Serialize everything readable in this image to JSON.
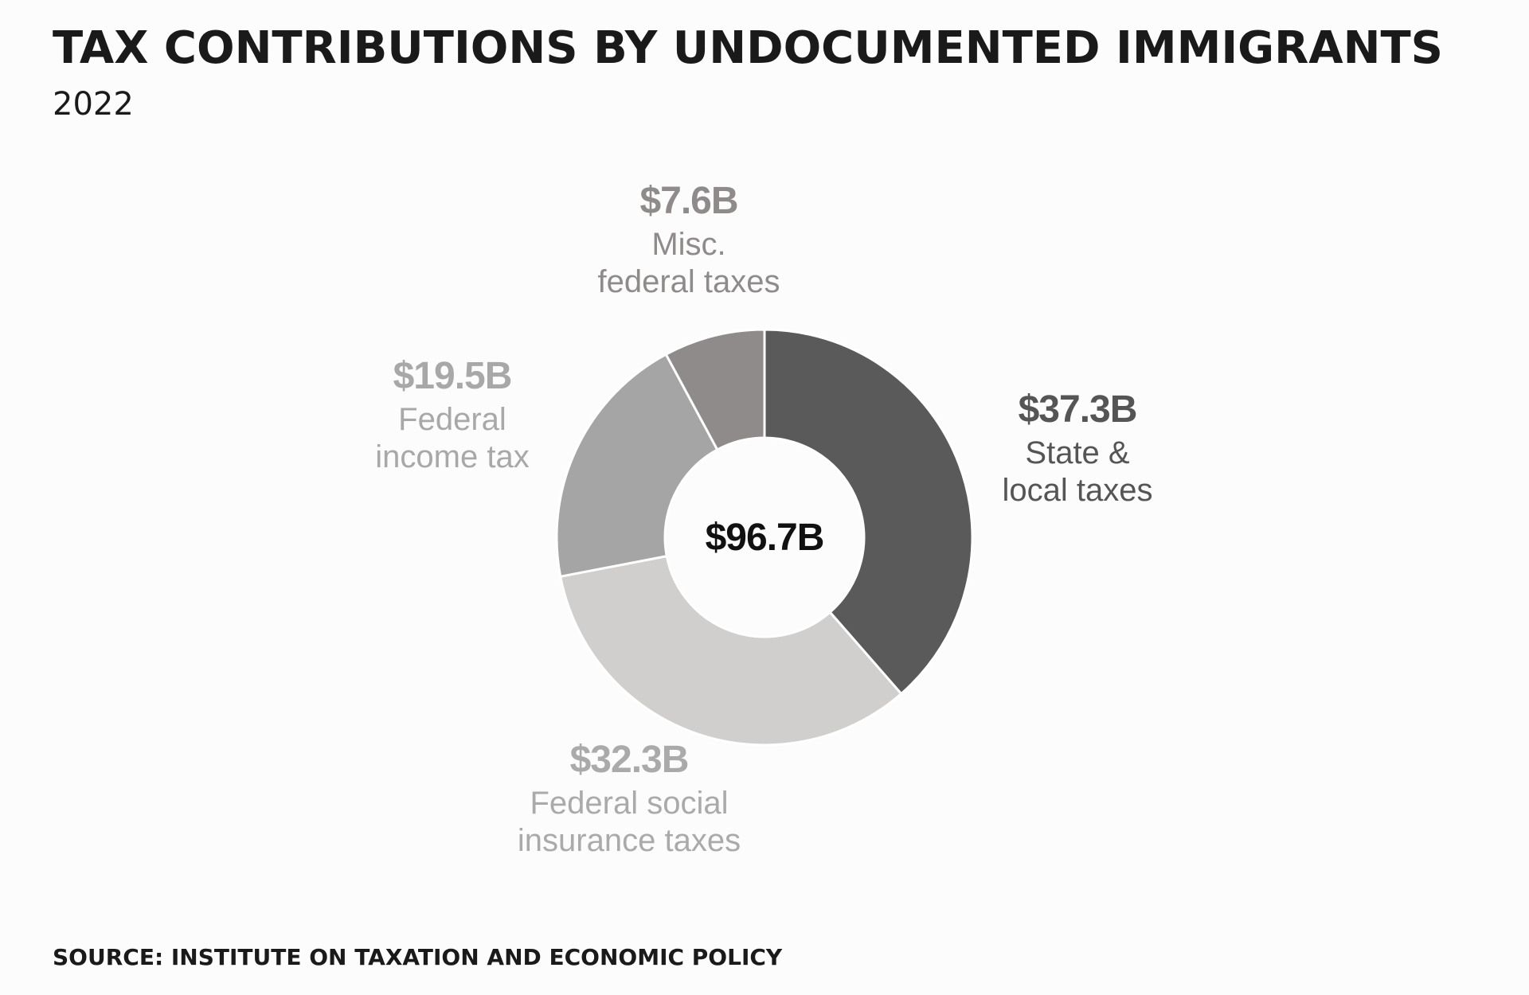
{
  "chart_data": {
    "type": "donut",
    "title": "TAX CONTRIBUTIONS BY UNDOCUMENTED IMMIGRANTS",
    "subtitle": "2022",
    "source": "SOURCE: INSTITUTE ON TAXATION AND ECONOMIC POLICY",
    "categories": [
      "State &\nlocal taxes",
      "Federal social\ninsurance taxes",
      "Federal\nincome tax",
      "Misc.\nfederal taxes"
    ],
    "values": [
      37.3,
      32.3,
      19.5,
      7.6
    ],
    "value_labels": [
      "$37.3B",
      "$32.3B",
      "$19.5B",
      "$7.6B"
    ],
    "colors": [
      "#5a5a5a",
      "#d0cfce",
      "#a5a5a5",
      "#8f8b8a"
    ],
    "label_colors": [
      "#555555",
      "#aaaaaa",
      "#a8a8a8",
      "#8f8b8a"
    ],
    "total": {
      "value": 96.7,
      "label": "$96.7B"
    }
  }
}
